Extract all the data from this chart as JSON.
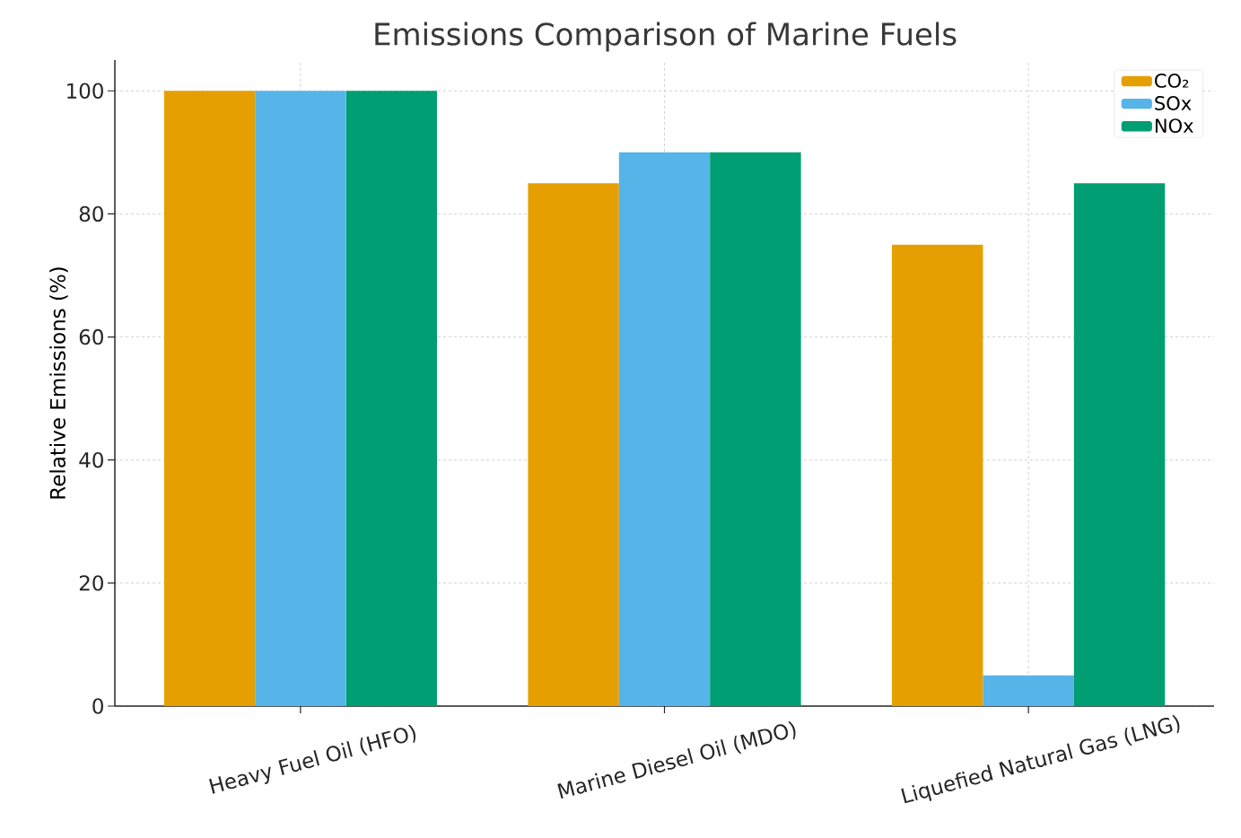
{
  "chart_data": {
    "type": "bar",
    "title": "Emissions Comparison of Marine Fuels",
    "ylabel": "Relative Emissions (%)",
    "categories": [
      "Heavy Fuel Oil (HFO)",
      "Marine Diesel Oil (MDO)",
      "Liquefied Natural Gas (LNG)"
    ],
    "series": [
      {
        "name": "CO₂",
        "color": "#e69f00",
        "values": [
          100,
          85,
          75
        ]
      },
      {
        "name": "SOx",
        "color": "#56b4e9",
        "values": [
          100,
          90,
          5
        ]
      },
      {
        "name": "NOx",
        "color": "#009e73",
        "values": [
          100,
          90,
          85
        ]
      }
    ],
    "ylim": [
      0,
      105
    ],
    "yticks": [
      0,
      20,
      40,
      60,
      80,
      100
    ],
    "grid": true,
    "legend": "top right"
  }
}
